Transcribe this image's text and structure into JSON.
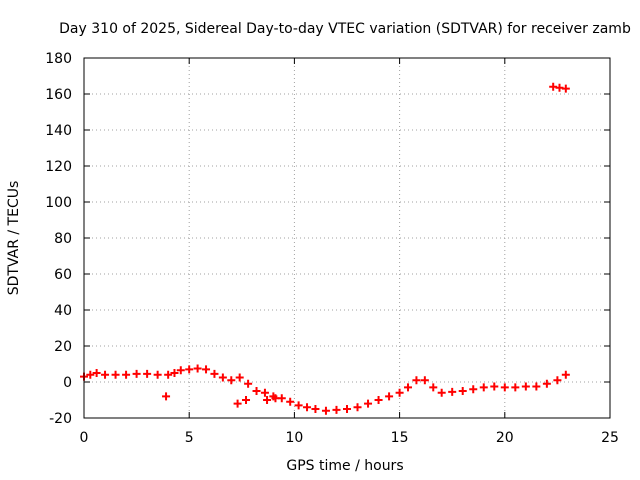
{
  "chart_data": {
    "type": "scatter",
    "title": "Day 310 of 2025, Sidereal Day-to-day VTEC variation (SDTVAR) for receiver zamb",
    "xlabel": "GPS time / hours",
    "ylabel": "SDTVAR / TECUs",
    "xlim": [
      0,
      25
    ],
    "ylim": [
      -20,
      180
    ],
    "xticks": [
      0,
      5,
      10,
      15,
      20,
      25
    ],
    "yticks": [
      -20,
      0,
      20,
      40,
      60,
      80,
      100,
      120,
      140,
      160,
      180
    ],
    "grid": true,
    "marker": "+",
    "color": "#ff0000",
    "series": [
      {
        "name": "SDTVAR",
        "points": [
          [
            0.0,
            3
          ],
          [
            0.3,
            4
          ],
          [
            0.6,
            5
          ],
          [
            1.0,
            4
          ],
          [
            1.5,
            4
          ],
          [
            2.0,
            4
          ],
          [
            2.5,
            4.5
          ],
          [
            3.0,
            4.5
          ],
          [
            3.5,
            4
          ],
          [
            4.0,
            4
          ],
          [
            4.3,
            5
          ],
          [
            4.6,
            6.5
          ],
          [
            5.0,
            7
          ],
          [
            5.4,
            7.5
          ],
          [
            5.8,
            7
          ],
          [
            6.2,
            4.5
          ],
          [
            6.6,
            2.5
          ],
          [
            7.0,
            1
          ],
          [
            7.4,
            2.5
          ],
          [
            7.8,
            -1
          ],
          [
            8.2,
            -5
          ],
          [
            8.6,
            -6
          ],
          [
            9.0,
            -8
          ],
          [
            9.4,
            -9
          ],
          [
            9.8,
            -11
          ],
          [
            10.2,
            -13
          ],
          [
            10.6,
            -14
          ],
          [
            11.0,
            -15
          ],
          [
            11.5,
            -16
          ],
          [
            12.0,
            -15.5
          ],
          [
            12.5,
            -15
          ],
          [
            13.0,
            -14
          ],
          [
            13.5,
            -12
          ],
          [
            14.0,
            -10
          ],
          [
            14.5,
            -8
          ],
          [
            15.0,
            -6
          ],
          [
            15.4,
            -3
          ],
          [
            15.8,
            1
          ],
          [
            16.2,
            1
          ],
          [
            16.6,
            -3
          ],
          [
            17.0,
            -6
          ],
          [
            17.5,
            -5.5
          ],
          [
            18.0,
            -5
          ],
          [
            18.5,
            -4
          ],
          [
            19.0,
            -3
          ],
          [
            19.5,
            -2.5
          ],
          [
            20.0,
            -3
          ],
          [
            20.5,
            -3
          ],
          [
            21.0,
            -2.5
          ],
          [
            21.5,
            -2.5
          ],
          [
            22.0,
            -1
          ],
          [
            22.5,
            1
          ],
          [
            22.9,
            4
          ],
          [
            3.9,
            -8
          ],
          [
            7.3,
            -12
          ],
          [
            7.7,
            -10
          ],
          [
            8.7,
            -10
          ],
          [
            9.1,
            -9
          ],
          [
            22.3,
            164
          ],
          [
            22.6,
            163.5
          ],
          [
            22.9,
            163
          ]
        ]
      }
    ]
  }
}
